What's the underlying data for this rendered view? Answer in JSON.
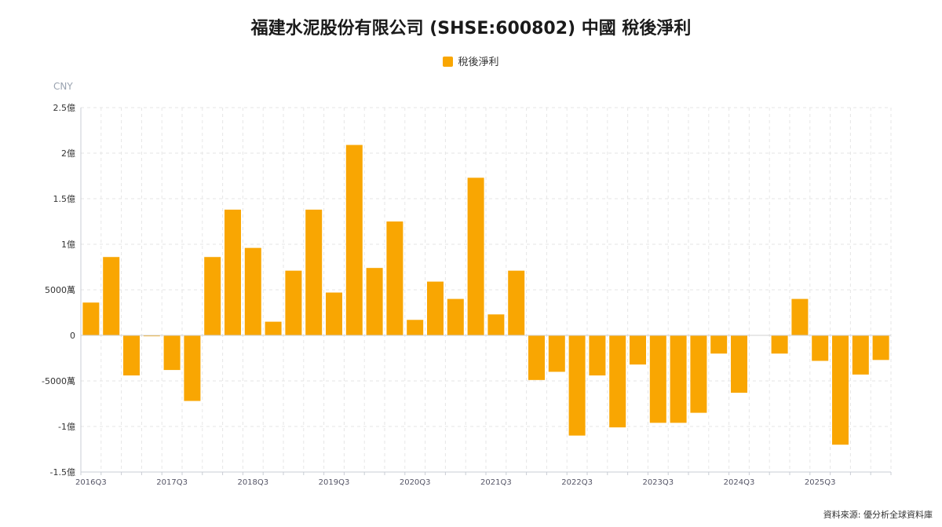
{
  "chart_data": {
    "type": "bar",
    "title": "福建水泥股份有限公司 (SHSE:600802) 中國 稅後淨利",
    "unit": "CNY",
    "series": [
      {
        "name": "稅後淨利",
        "color": "#f9a602",
        "values": [
          36000000,
          86000000,
          -44000000,
          -1000000,
          -38000000,
          -72000000,
          86000000,
          138000000,
          96000000,
          15000000,
          71000000,
          138000000,
          47000000,
          209000000,
          74000000,
          125000000,
          17000000,
          59000000,
          40000000,
          173000000,
          23000000,
          71000000,
          -49000000,
          -40000000,
          -110000000,
          -44000000,
          -101000000,
          -32000000,
          -96000000,
          -96000000,
          -85000000,
          -20000000,
          -63000000,
          0,
          -20000000,
          40000000,
          -28000000,
          -120000000,
          -43000000,
          -27000000
        ]
      }
    ],
    "x_tick_labels": [
      "2016Q3",
      "2017Q3",
      "2018Q3",
      "2019Q3",
      "2020Q3",
      "2021Q3",
      "2022Q3",
      "2023Q3",
      "2024Q3",
      "2025Q3"
    ],
    "y_ticks": [
      {
        "value": 250000000,
        "label": "2.5億"
      },
      {
        "value": 200000000,
        "label": "2億"
      },
      {
        "value": 150000000,
        "label": "1.5億"
      },
      {
        "value": 100000000,
        "label": "1億"
      },
      {
        "value": 50000000,
        "label": "5000萬"
      },
      {
        "value": 0,
        "label": "0"
      },
      {
        "value": -50000000,
        "label": "-5000萬"
      },
      {
        "value": -100000000,
        "label": "-1億"
      },
      {
        "value": -150000000,
        "label": "-1.5億"
      }
    ],
    "ylim": [
      -150000000,
      250000000
    ],
    "grid": true,
    "legend_position": "top-center"
  },
  "footer": {
    "source": "資料來源: 優分析全球資料庫"
  }
}
